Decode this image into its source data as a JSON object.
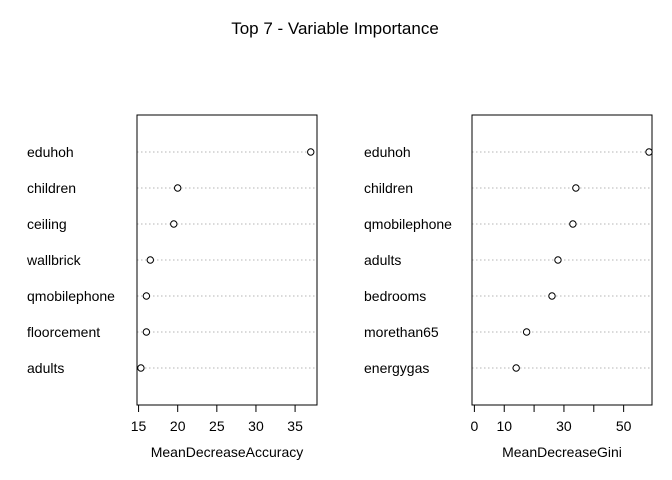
{
  "chart_data": {
    "title": "Top 7 - Variable Importance",
    "panels": [
      {
        "type": "scatter",
        "style": "dotchart",
        "xlabel": "MeanDecreaseAccuracy",
        "ylabel": "",
        "categories": [
          "eduhoh",
          "children",
          "ceiling",
          "wallbrick",
          "qmobilephone",
          "floorcement",
          "adults"
        ],
        "values": [
          37.0,
          20.0,
          19.5,
          16.5,
          16.0,
          16.0,
          15.3
        ],
        "xlim": [
          14.8,
          37.8
        ],
        "ticks": [
          15,
          20,
          25,
          30,
          35
        ],
        "grid": "dotted horizontal"
      },
      {
        "type": "scatter",
        "style": "dotchart",
        "xlabel": "MeanDecreaseGini",
        "ylabel": "",
        "categories": [
          "eduhoh",
          "children",
          "qmobilephone",
          "adults",
          "bedrooms",
          "morethan65",
          "energygas"
        ],
        "values": [
          58.5,
          34.0,
          33.0,
          28.0,
          26.0,
          17.5,
          14.0
        ],
        "xlim": [
          -0.8,
          59.5
        ],
        "ticks": [
          0,
          10,
          20,
          30,
          40,
          50
        ],
        "tick_labels": [
          "0",
          "10",
          "",
          "30",
          "",
          "50"
        ],
        "grid": "dotted horizontal"
      }
    ]
  }
}
